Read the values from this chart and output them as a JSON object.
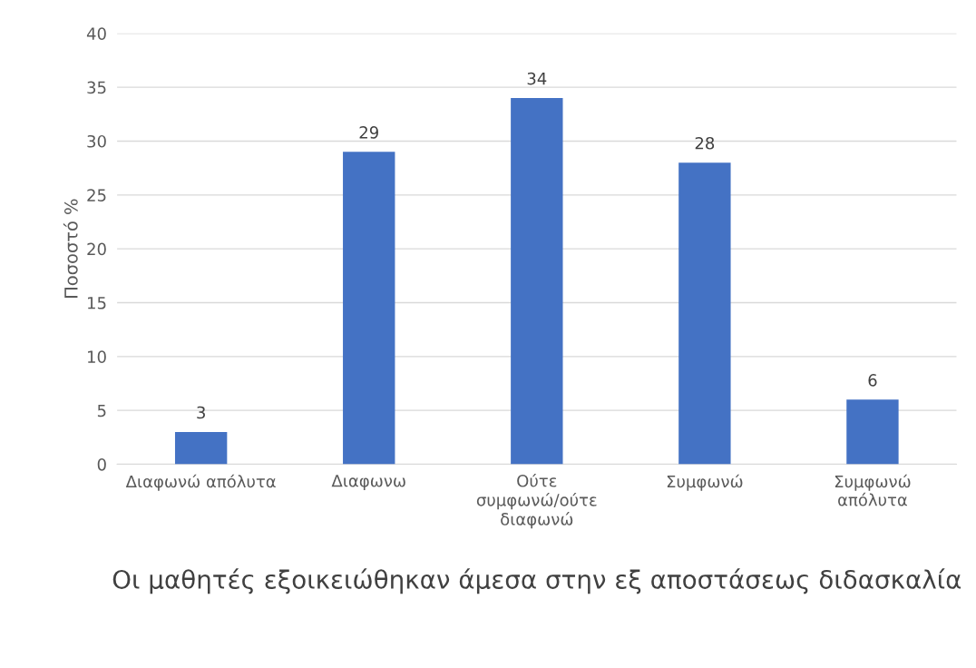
{
  "chart_data": {
    "type": "bar",
    "xlabel": "Οι μαθητές εξοικειώθηκαν άμεσα στην εξ αποστάσεως διδασκαλία",
    "ylabel": "Ποσοστό %",
    "categories": [
      "Διαφωνώ απόλυτα",
      "Διαφωνω",
      "Ούτε\nσυμφωνώ/ούτε\nδιαφωνώ",
      "Συμφωνώ",
      "Συμφωνώ\nαπόλυτα"
    ],
    "values": [
      3,
      29,
      34,
      28,
      6
    ],
    "color": "#4472c4",
    "ylim": [
      0,
      40
    ],
    "yticks": [
      0,
      5,
      10,
      15,
      20,
      25,
      30,
      35,
      40
    ],
    "grid": "y",
    "data_labels": true
  }
}
